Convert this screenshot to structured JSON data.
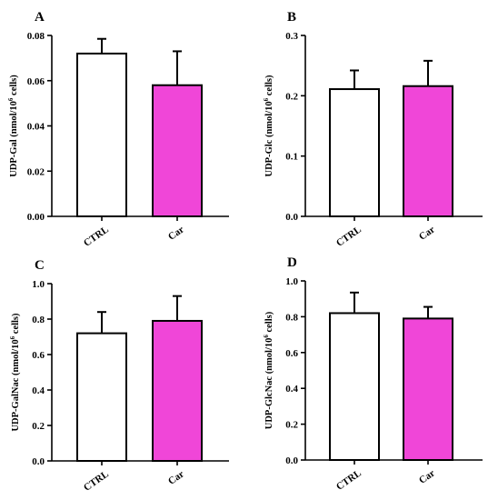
{
  "colors": {
    "ctrl_fill": "#ffffff",
    "car_fill": "#f046d8",
    "stroke": "#000000"
  },
  "chart_data": [
    {
      "type": "bar",
      "panel": "A",
      "ylabel_main": "UDP-Gal (nmol/10",
      "ylabel_sup": "6",
      "ylabel_end": " cells)",
      "categories": [
        "CTRL",
        "Car"
      ],
      "values": [
        0.072,
        0.058
      ],
      "errors": [
        0.0065,
        0.015
      ],
      "ylim": [
        0,
        0.08
      ],
      "yticks": [
        0.0,
        0.02,
        0.04,
        0.06,
        0.08
      ],
      "ytick_labels": [
        "0.00",
        "0.02",
        "0.04",
        "0.06",
        "0.08"
      ]
    },
    {
      "type": "bar",
      "panel": "B",
      "ylabel_main": "UDP-Glc (nmol/10",
      "ylabel_sup": "6",
      "ylabel_end": " cells)",
      "categories": [
        "CTRL",
        "Car"
      ],
      "values": [
        0.211,
        0.216
      ],
      "errors": [
        0.031,
        0.042
      ],
      "ylim": [
        0,
        0.3
      ],
      "yticks": [
        0.0,
        0.1,
        0.2,
        0.3
      ],
      "ytick_labels": [
        "0.0",
        "0.1",
        "0.2",
        "0.3"
      ]
    },
    {
      "type": "bar",
      "panel": "C",
      "ylabel_main": "UDP-GalNac (nmol/10",
      "ylabel_sup": "6",
      "ylabel_end": " cells)",
      "categories": [
        "CTRL",
        "Car"
      ],
      "values": [
        0.72,
        0.79
      ],
      "errors": [
        0.12,
        0.14
      ],
      "ylim": [
        0,
        1.0
      ],
      "yticks": [
        0.0,
        0.2,
        0.4,
        0.6,
        0.8,
        1.0
      ],
      "ytick_labels": [
        "0.0",
        "0.2",
        "0.4",
        "0.6",
        "0.8",
        "1.0"
      ]
    },
    {
      "type": "bar",
      "panel": "D",
      "ylabel_main": "UDP-GlcNac (nmol/10",
      "ylabel_sup": "6",
      "ylabel_end": " cells)",
      "categories": [
        "CTRL",
        "Car"
      ],
      "values": [
        0.82,
        0.79
      ],
      "errors": [
        0.115,
        0.065
      ],
      "ylim": [
        0,
        1.0
      ],
      "yticks": [
        0.0,
        0.2,
        0.4,
        0.6,
        0.8,
        1.0
      ],
      "ytick_labels": [
        "0.0",
        "0.2",
        "0.4",
        "0.6",
        "0.8",
        "1.0"
      ]
    }
  ]
}
